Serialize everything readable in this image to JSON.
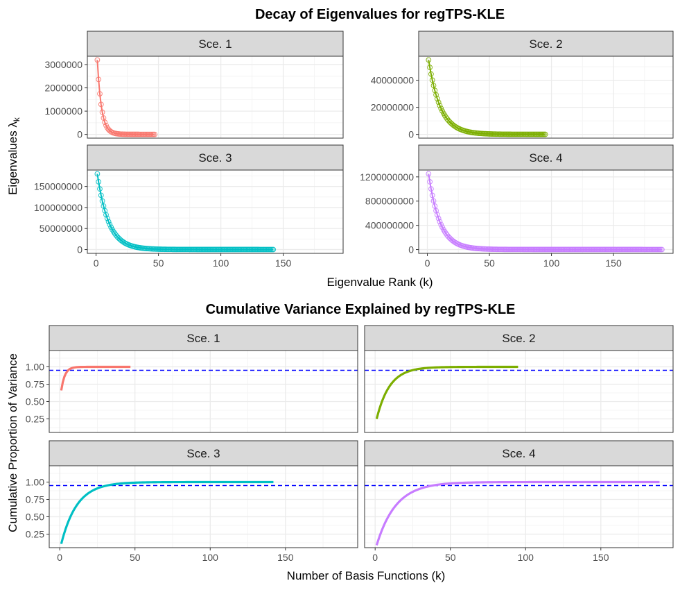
{
  "chart_data": [
    {
      "type": "scatter",
      "title": "Decay of Eigenvalues for regTPS-KLE",
      "xlabel": "Eigenvalue Rank (k)",
      "ylabel": "Eigenvalues λk",
      "ylabel_main": "Eigenvalues ",
      "ylabel_sym": "λ",
      "ylabel_sub": "k",
      "xlim": [
        -7,
        198
      ],
      "xticks": [
        0,
        50,
        100,
        150
      ],
      "xtick_labels": [
        "0",
        "50",
        "100",
        "150"
      ],
      "panels": [
        {
          "label": "Sce. 1",
          "color": "#F8766D",
          "n": 47,
          "first": 3200000,
          "decay": 3.3,
          "tail": 0.0006,
          "ylim": [
            -160000,
            3360000
          ],
          "yticks": [
            0,
            1000000,
            2000000,
            3000000
          ],
          "ytick_labels": [
            "0",
            "1000000",
            "2000000",
            "3000000"
          ]
        },
        {
          "label": "Sce. 2",
          "color": "#7CAE00",
          "n": 95,
          "first": 55000000,
          "decay": 9.5,
          "tail": 0.001,
          "ylim": [
            -2750000,
            57750000
          ],
          "yticks": [
            0,
            20000000,
            40000000
          ],
          "ytick_labels": [
            "0",
            "20000000",
            "40000000"
          ]
        },
        {
          "label": "Sce. 3",
          "color": "#00BFC4",
          "n": 142,
          "first": 180000000,
          "decay": 9.0,
          "tail": 0.0012,
          "ylim": [
            -9000000,
            189000000
          ],
          "yticks": [
            0,
            50000000,
            100000000,
            150000000
          ],
          "ytick_labels": [
            "0",
            "50000000",
            "100000000",
            "150000000"
          ]
        },
        {
          "label": "Sce. 4",
          "color": "#C77CFF",
          "n": 189,
          "first": 1250000000,
          "decay": 9.0,
          "tail": 0.0012,
          "ylim": [
            -62500000,
            1312500000
          ],
          "yticks": [
            0,
            400000000,
            800000000,
            1200000000
          ],
          "ytick_labels": [
            "0",
            "400000000",
            "800000000",
            "1200000000"
          ]
        }
      ]
    },
    {
      "type": "line",
      "title": "Cumulative Variance Explained by regTPS-KLE",
      "xlabel": "Number of Basis Functions (k)",
      "ylabel": "Cumulative Proportion of Variance",
      "xlim": [
        -7,
        198
      ],
      "ylim": [
        0.055,
        1.235
      ],
      "xticks": [
        0,
        50,
        100,
        150
      ],
      "xtick_labels": [
        "0",
        "50",
        "100",
        "150"
      ],
      "yticks": [
        0.25,
        0.5,
        0.75,
        1.0
      ],
      "ytick_labels": [
        "0.25",
        "0.50",
        "0.75",
        "1.00"
      ],
      "threshold": 0.95,
      "threshold_color": "#0000FF",
      "panels": [
        {
          "label": "Sce. 1",
          "color": "#F8766D",
          "n": 47,
          "start": 0.66,
          "rate": 0.42
        },
        {
          "label": "Sce. 2",
          "color": "#7CAE00",
          "n": 95,
          "start": 0.25,
          "rate": 0.115
        },
        {
          "label": "Sce. 3",
          "color": "#00BFC4",
          "n": 142,
          "start": 0.11,
          "rate": 0.095
        },
        {
          "label": "Sce. 4",
          "color": "#C77CFF",
          "n": 189,
          "start": 0.09,
          "rate": 0.078
        }
      ]
    }
  ]
}
